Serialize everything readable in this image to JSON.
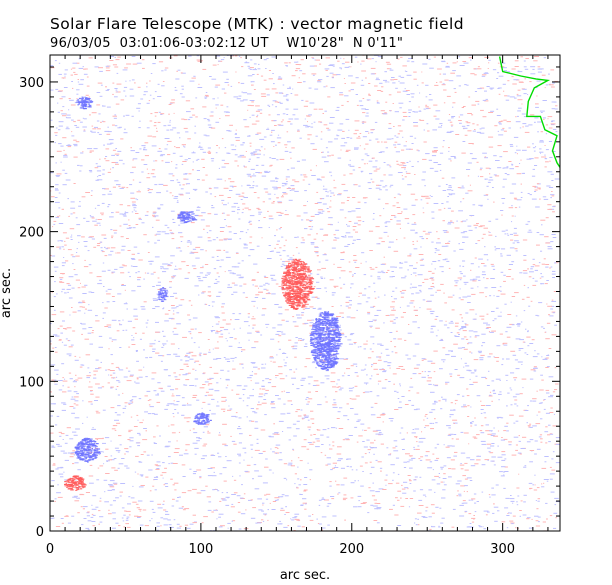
{
  "chart_data": {
    "type": "heatmap",
    "title": "Solar Flare Telescope (MTK) : vector magnetic field",
    "subtitle": "96/03/05  03:01:06-03:02:12 UT    W10'28\"  N 0'11\"",
    "xlabel": "arc sec.",
    "ylabel": "arc sec.",
    "xlim": [
      0,
      338
    ],
    "ylim": [
      0,
      318
    ],
    "x_ticks": [
      0,
      100,
      200,
      300
    ],
    "y_ticks": [
      0,
      100,
      200,
      300
    ],
    "x_tick_labels": [
      "0",
      "100",
      "200",
      "300"
    ],
    "y_tick_labels": [
      "0",
      "100",
      "200",
      "300"
    ],
    "colors": {
      "positive_polarity": "#ff5a5a",
      "negative_polarity": "#6f74ff",
      "limb_contour": "#00dd00",
      "axes": "#000000",
      "background": "#ffffff"
    },
    "polarity_regions": [
      {
        "polarity": "positive",
        "x": 163,
        "y": 165,
        "rx": 10,
        "ry": 17
      },
      {
        "polarity": "negative",
        "x": 182,
        "y": 127,
        "rx": 10,
        "ry": 20
      },
      {
        "polarity": "negative",
        "x": 24,
        "y": 54,
        "rx": 8,
        "ry": 8
      },
      {
        "polarity": "negative",
        "x": 74,
        "y": 158,
        "rx": 3,
        "ry": 5
      },
      {
        "polarity": "positive",
        "x": 16,
        "y": 32,
        "rx": 7,
        "ry": 5
      },
      {
        "polarity": "negative",
        "x": 22,
        "y": 286,
        "rx": 5,
        "ry": 4
      },
      {
        "polarity": "negative",
        "x": 90,
        "y": 210,
        "rx": 6,
        "ry": 4
      },
      {
        "polarity": "negative",
        "x": 100,
        "y": 75,
        "rx": 6,
        "ry": 4
      }
    ],
    "limb_contour": [
      [
        298,
        317
      ],
      [
        300,
        307
      ],
      [
        312,
        304
      ],
      [
        322,
        302
      ],
      [
        330,
        301
      ],
      [
        321,
        296
      ],
      [
        317,
        287
      ],
      [
        316,
        277
      ],
      [
        325,
        277
      ],
      [
        328,
        268
      ],
      [
        336,
        264
      ],
      [
        333,
        254
      ],
      [
        336,
        246
      ],
      [
        338,
        243
      ]
    ]
  }
}
